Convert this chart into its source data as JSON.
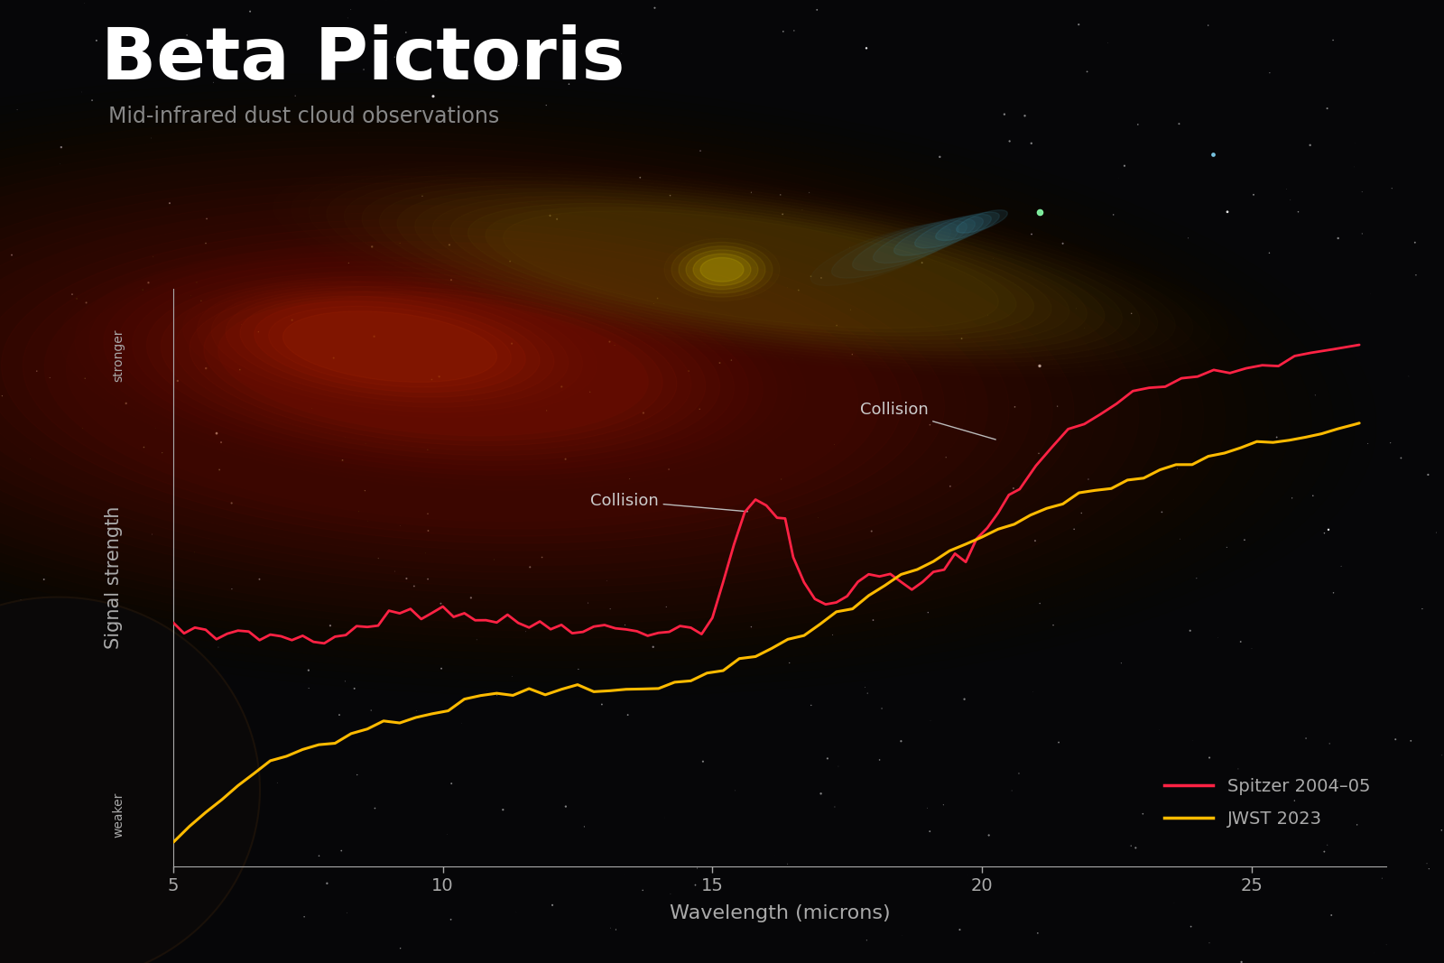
{
  "title": "Beta Pictoris",
  "subtitle": "Mid-infrared dust cloud observations",
  "xlabel": "Wavelength (microns)",
  "ylabel": "Signal strength",
  "ylabel_stronger": "stronger",
  "ylabel_weaker": "weaker",
  "xlim": [
    5,
    27.5
  ],
  "xticks": [
    5,
    10,
    15,
    20,
    25
  ],
  "background_color": "#060608",
  "title_color": "#ffffff",
  "subtitle_color": "#888888",
  "axis_color": "#aaaaaa",
  "tick_color": "#aaaaaa",
  "spitzer_color": "#ff2244",
  "jwst_color": "#ffbb00",
  "legend_spitzer": "Spitzer 2004–05",
  "legend_jwst": "JWST 2023",
  "spitzer_x": [
    5.0,
    5.2,
    5.4,
    5.6,
    5.8,
    6.0,
    6.2,
    6.4,
    6.6,
    6.8,
    7.0,
    7.2,
    7.4,
    7.6,
    7.8,
    8.0,
    8.2,
    8.4,
    8.6,
    8.8,
    9.0,
    9.2,
    9.4,
    9.6,
    9.8,
    10.0,
    10.2,
    10.4,
    10.6,
    10.8,
    11.0,
    11.2,
    11.4,
    11.6,
    11.8,
    12.0,
    12.2,
    12.4,
    12.6,
    12.8,
    13.0,
    13.2,
    13.4,
    13.6,
    13.8,
    14.0,
    14.2,
    14.4,
    14.6,
    14.8,
    15.0,
    15.2,
    15.4,
    15.6,
    15.8,
    16.0,
    16.2,
    16.35,
    16.5,
    16.7,
    16.9,
    17.1,
    17.3,
    17.5,
    17.7,
    17.9,
    18.1,
    18.3,
    18.5,
    18.7,
    18.9,
    19.1,
    19.3,
    19.5,
    19.7,
    19.9,
    20.1,
    20.3,
    20.5,
    20.7,
    21.0,
    21.3,
    21.6,
    21.9,
    22.2,
    22.5,
    22.8,
    23.1,
    23.4,
    23.7,
    24.0,
    24.3,
    24.6,
    24.9,
    25.2,
    25.5,
    25.8,
    26.1,
    26.5,
    27.0
  ],
  "spitzer_y": [
    0.44,
    0.425,
    0.43,
    0.42,
    0.415,
    0.425,
    0.418,
    0.422,
    0.415,
    0.418,
    0.422,
    0.415,
    0.418,
    0.422,
    0.418,
    0.422,
    0.428,
    0.435,
    0.442,
    0.448,
    0.455,
    0.462,
    0.468,
    0.46,
    0.465,
    0.472,
    0.462,
    0.458,
    0.452,
    0.45,
    0.448,
    0.445,
    0.443,
    0.442,
    0.44,
    0.44,
    0.438,
    0.438,
    0.436,
    0.435,
    0.434,
    0.432,
    0.432,
    0.43,
    0.43,
    0.43,
    0.43,
    0.43,
    0.432,
    0.435,
    0.45,
    0.52,
    0.59,
    0.64,
    0.66,
    0.65,
    0.64,
    0.635,
    0.56,
    0.51,
    0.49,
    0.478,
    0.488,
    0.5,
    0.512,
    0.522,
    0.528,
    0.525,
    0.515,
    0.508,
    0.515,
    0.525,
    0.54,
    0.558,
    0.572,
    0.59,
    0.615,
    0.645,
    0.675,
    0.7,
    0.73,
    0.76,
    0.785,
    0.808,
    0.828,
    0.845,
    0.858,
    0.868,
    0.876,
    0.884,
    0.89,
    0.896,
    0.902,
    0.908,
    0.914,
    0.92,
    0.926,
    0.932,
    0.94,
    0.95
  ],
  "jwst_x": [
    5.0,
    5.3,
    5.6,
    5.9,
    6.2,
    6.5,
    6.8,
    7.1,
    7.4,
    7.7,
    8.0,
    8.3,
    8.6,
    8.9,
    9.2,
    9.5,
    9.8,
    10.1,
    10.4,
    10.7,
    11.0,
    11.3,
    11.6,
    11.9,
    12.2,
    12.5,
    12.8,
    13.1,
    13.4,
    13.7,
    14.0,
    14.3,
    14.6,
    14.9,
    15.2,
    15.5,
    15.8,
    16.1,
    16.4,
    16.7,
    17.0,
    17.3,
    17.6,
    17.9,
    18.2,
    18.5,
    18.8,
    19.1,
    19.4,
    19.7,
    20.0,
    20.3,
    20.6,
    20.9,
    21.2,
    21.5,
    21.8,
    22.1,
    22.4,
    22.7,
    23.0,
    23.3,
    23.6,
    23.9,
    24.2,
    24.5,
    24.8,
    25.1,
    25.4,
    25.7,
    26.0,
    26.3,
    26.6,
    26.9,
    27.0
  ],
  "jwst_y": [
    0.05,
    0.075,
    0.1,
    0.125,
    0.148,
    0.168,
    0.185,
    0.2,
    0.212,
    0.222,
    0.232,
    0.242,
    0.25,
    0.255,
    0.262,
    0.27,
    0.278,
    0.288,
    0.3,
    0.308,
    0.312,
    0.315,
    0.318,
    0.318,
    0.32,
    0.322,
    0.322,
    0.322,
    0.322,
    0.325,
    0.33,
    0.335,
    0.342,
    0.35,
    0.36,
    0.372,
    0.385,
    0.398,
    0.41,
    0.425,
    0.44,
    0.458,
    0.475,
    0.492,
    0.51,
    0.528,
    0.545,
    0.56,
    0.572,
    0.585,
    0.598,
    0.612,
    0.625,
    0.638,
    0.65,
    0.662,
    0.672,
    0.682,
    0.692,
    0.7,
    0.71,
    0.718,
    0.726,
    0.734,
    0.742,
    0.75,
    0.758,
    0.765,
    0.772,
    0.778,
    0.784,
    0.79,
    0.796,
    0.802,
    0.805
  ]
}
